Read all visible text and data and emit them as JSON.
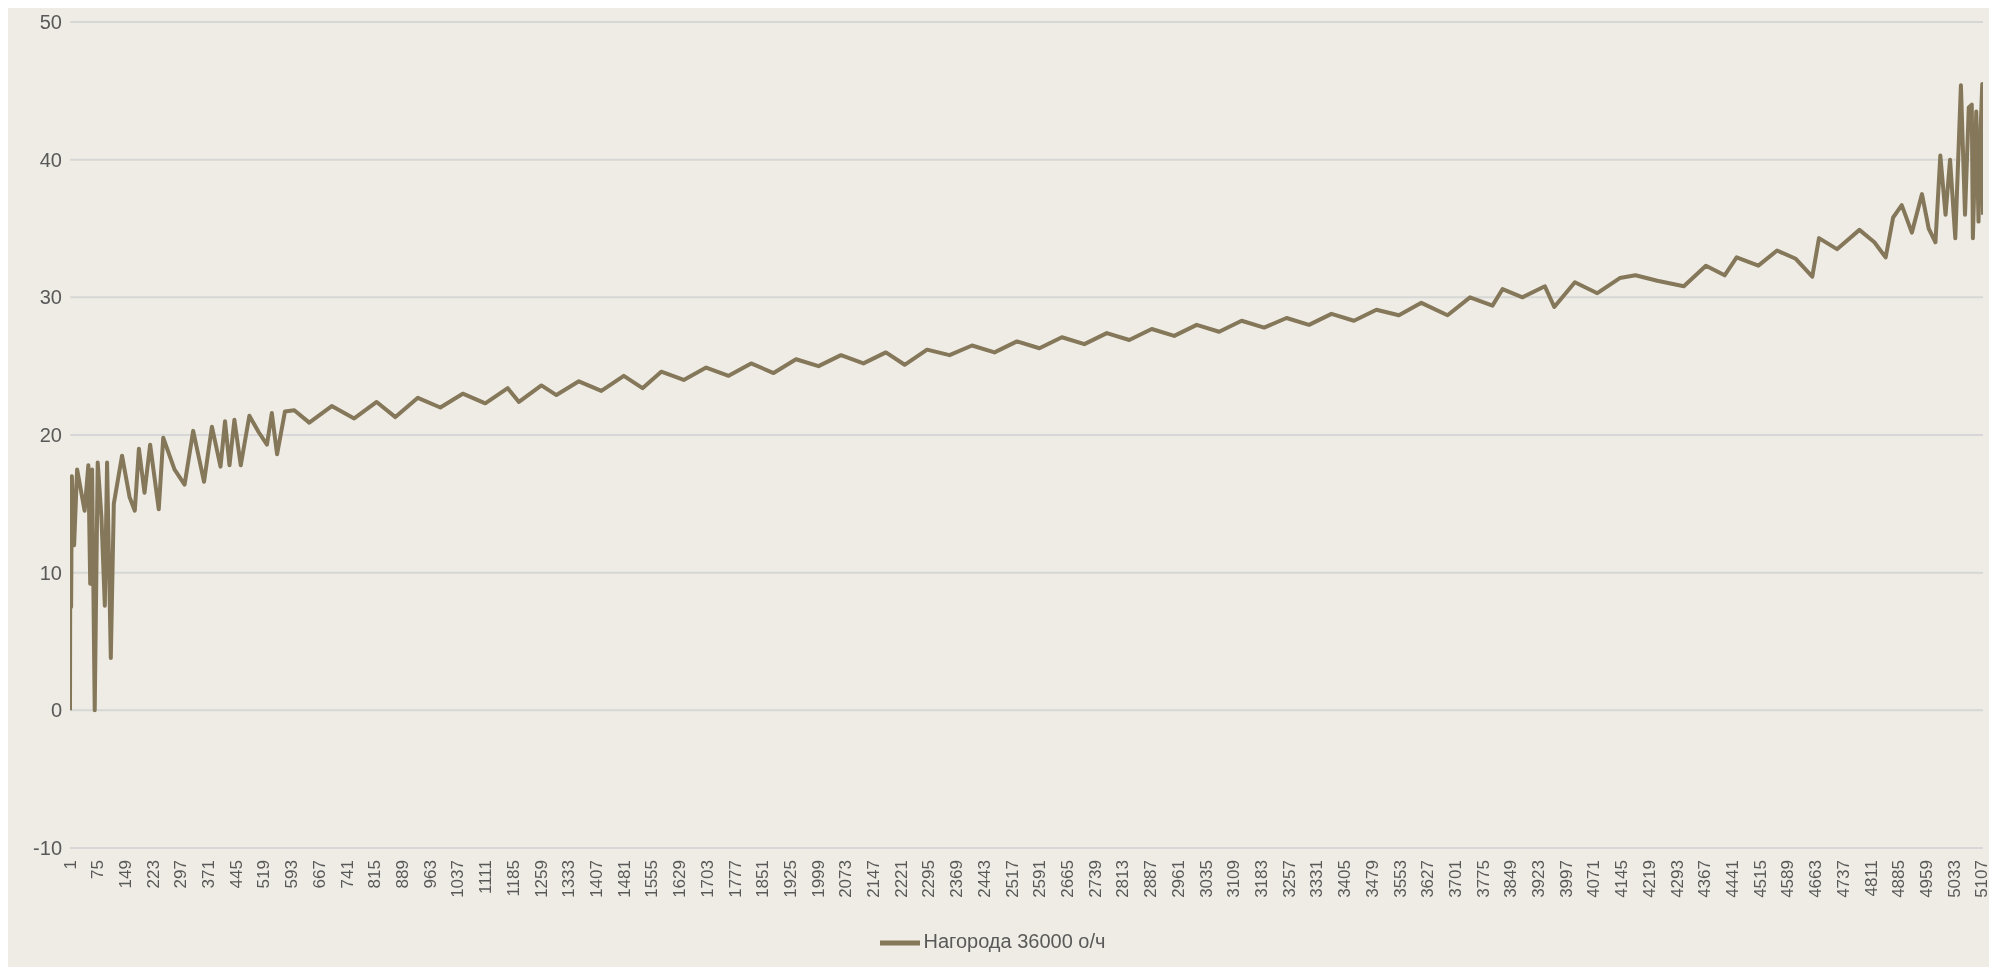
{
  "chart_data": {
    "type": "line",
    "x": [
      1,
      2,
      4,
      6,
      12,
      20,
      40,
      50,
      55,
      60,
      67,
      75,
      85,
      94,
      100,
      110,
      118,
      140,
      160,
      174,
      185,
      200,
      215,
      238,
      250,
      280,
      307,
      330,
      359,
      380,
      403,
      415,
      427,
      440,
      457,
      480,
      505,
      527,
      540,
      554,
      575,
      600,
      640,
      700,
      760,
      820,
      870,
      930,
      990,
      1050,
      1110,
      1170,
      1200,
      1260,
      1300,
      1360,
      1420,
      1480,
      1530,
      1580,
      1640,
      1700,
      1760,
      1820,
      1880,
      1940,
      2000,
      2060,
      2120,
      2180,
      2230,
      2290,
      2350,
      2410,
      2470,
      2530,
      2590,
      2650,
      2710,
      2770,
      2830,
      2890,
      2950,
      3010,
      3070,
      3130,
      3190,
      3250,
      3310,
      3370,
      3430,
      3490,
      3550,
      3610,
      3680,
      3740,
      3800,
      3827,
      3880,
      3940,
      3965,
      4020,
      4080,
      4140,
      4182,
      4240,
      4311,
      4370,
      4420,
      4452,
      4510,
      4560,
      4610,
      4654,
      4672,
      4720,
      4780,
      4820,
      4850,
      4870,
      4893,
      4920,
      4947,
      4965,
      4983,
      4996,
      5010,
      5022,
      5036,
      5051,
      5062,
      5072,
      5080,
      5083,
      5092,
      5098,
      5104,
      5108,
      5110
    ],
    "series": [
      {
        "name": "Нагорода 36000 о/ч",
        "color": "#857759",
        "values": [
          0,
          16.5,
          7.5,
          17,
          12,
          17.5,
          14.5,
          17.8,
          9.2,
          17.5,
          0,
          18,
          14,
          7.6,
          18,
          3.8,
          15,
          18.5,
          15.5,
          14.5,
          19,
          15.8,
          19.3,
          14.6,
          19.8,
          17.5,
          16.4,
          20.3,
          16.6,
          20.6,
          17.7,
          21,
          17.8,
          21.1,
          17.8,
          21.4,
          20.2,
          19.3,
          21.6,
          18.6,
          21.7,
          21.8,
          20.9,
          22.1,
          21.2,
          22.4,
          21.3,
          22.7,
          22,
          23,
          22.3,
          23.4,
          22.4,
          23.6,
          22.9,
          23.9,
          23.2,
          24.3,
          23.4,
          24.6,
          24,
          24.9,
          24.3,
          25.2,
          24.5,
          25.5,
          25,
          25.8,
          25.2,
          26,
          25.1,
          26.2,
          25.8,
          26.5,
          26,
          26.8,
          26.3,
          27.1,
          26.6,
          27.4,
          26.9,
          27.7,
          27.2,
          28,
          27.5,
          28.3,
          27.8,
          28.5,
          28,
          28.8,
          28.3,
          29.1,
          28.7,
          29.6,
          28.7,
          30,
          29.4,
          30.6,
          30,
          30.8,
          29.3,
          31.1,
          30.3,
          31.4,
          31.6,
          31.2,
          30.8,
          32.3,
          31.6,
          32.9,
          32.3,
          33.4,
          32.8,
          31.5,
          34.3,
          33.5,
          34.9,
          34,
          32.9,
          35.8,
          36.7,
          34.7,
          37.5,
          35,
          34,
          40.3,
          36,
          40,
          34.3,
          45.4,
          36,
          43.8,
          44,
          34.3,
          43.5,
          35.5,
          42.5,
          45.5,
          36
        ]
      }
    ],
    "xlim": [
      1,
      5110
    ],
    "xticks": [
      1,
      75,
      149,
      223,
      297,
      371,
      445,
      519,
      593,
      667,
      741,
      815,
      889,
      963,
      1037,
      1111,
      1185,
      1259,
      1333,
      1407,
      1481,
      1555,
      1629,
      1703,
      1777,
      1851,
      1925,
      1999,
      2073,
      2147,
      2221,
      2295,
      2369,
      2443,
      2517,
      2591,
      2665,
      2739,
      2813,
      2887,
      2961,
      3035,
      3109,
      3183,
      3257,
      3331,
      3405,
      3479,
      3553,
      3627,
      3701,
      3775,
      3849,
      3923,
      3997,
      4071,
      4145,
      4219,
      4293,
      4367,
      4441,
      4515,
      4589,
      4663,
      4737,
      4811,
      4885,
      4959,
      5033,
      5107
    ],
    "ylim": [
      -10,
      50
    ],
    "yticks": [
      -10,
      0,
      10,
      20,
      30,
      40,
      50
    ],
    "grid": "y",
    "legend": "bottom",
    "marker": "none",
    "line_style": "solid"
  }
}
